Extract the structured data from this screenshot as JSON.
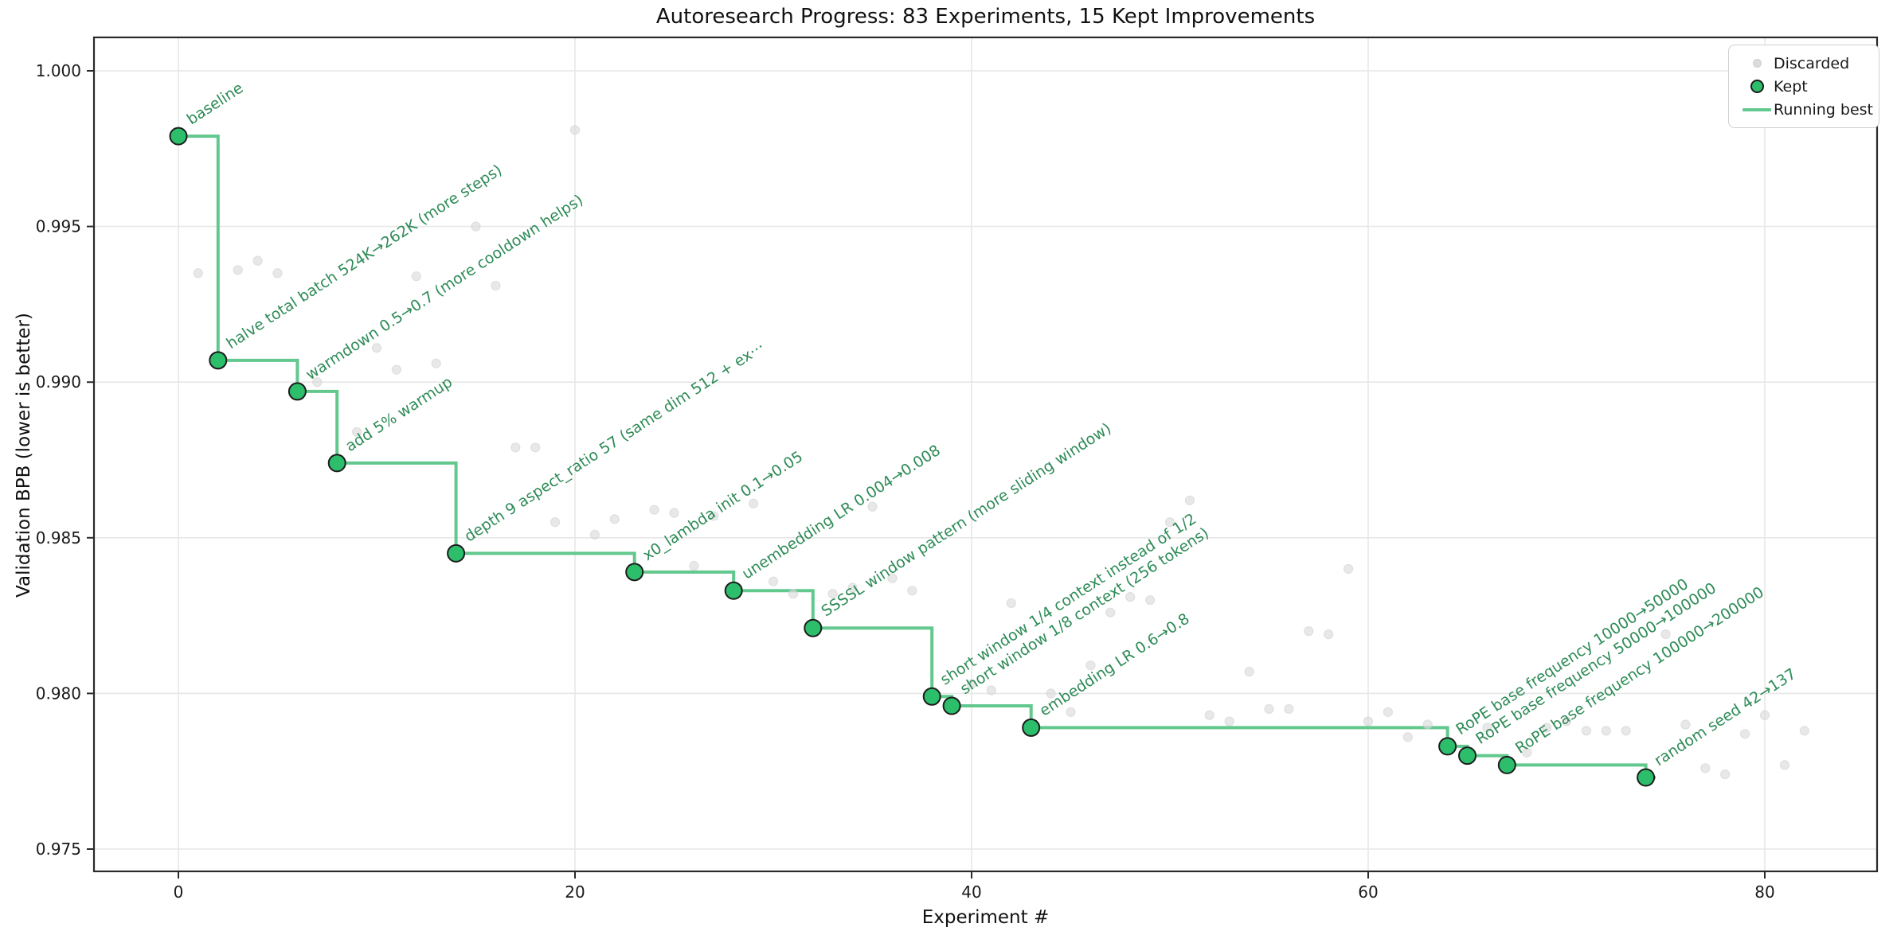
{
  "title": "Autoresearch Progress: 83 Experiments, 15 Kept Improvements",
  "axes": {
    "x_label": "Experiment #",
    "y_label": "Validation BPB (lower is better)",
    "x_ticks": [
      0,
      20,
      40,
      60,
      80
    ],
    "y_ticks": [
      1.0,
      0.995,
      0.99,
      0.985,
      0.98,
      0.975
    ],
    "y_tick_labels": [
      "1.000",
      "0.995",
      "0.990",
      "0.985",
      "0.980",
      "0.975"
    ],
    "x_range": [
      -4.3,
      85.7
    ],
    "y_range": [
      0.9743,
      1.0011
    ],
    "grid": true
  },
  "legend": {
    "position": "upper right",
    "items": [
      {
        "label": "Discarded",
        "marker": "small-gray-dot"
      },
      {
        "label": "Kept",
        "marker": "green-dot"
      },
      {
        "label": "Running best",
        "marker": "green-line"
      }
    ]
  },
  "colors": {
    "kept_fill": "#2dbe6c",
    "kept_edge": "#1c1c1c",
    "running_best_line": "#62c88e",
    "discarded_fill": "#dcdcdc",
    "discarded_edge": "#cfcfcf",
    "annotation_text": "#2e8b57",
    "grid": "#e7e7e7",
    "spine": "#2a2a2a",
    "text": "#191919"
  },
  "chart_data": {
    "type": "scatter",
    "title": "Autoresearch Progress: 83 Experiments, 15 Kept Improvements",
    "xlabel": "Experiment #",
    "ylabel": "Validation BPB (lower is better)",
    "annotation_rotation_deg": 33,
    "series": [
      {
        "name": "Kept",
        "points": [
          {
            "x": 0,
            "y": 0.9979,
            "label": "baseline"
          },
          {
            "x": 2,
            "y": 0.9907,
            "label": "halve total batch 524K→262K (more steps)"
          },
          {
            "x": 6,
            "y": 0.9897,
            "label": "warmdown 0.5→0.7 (more cooldown helps)"
          },
          {
            "x": 8,
            "y": 0.9874,
            "label": "add 5% warmup"
          },
          {
            "x": 14,
            "y": 0.9845,
            "label": "depth 9 aspect_ratio 57 (same dim 512 + ex···"
          },
          {
            "x": 23,
            "y": 0.9839,
            "label": "x0_lambda init 0.1→0.05"
          },
          {
            "x": 28,
            "y": 0.9833,
            "label": "unembedding LR 0.004→0.008"
          },
          {
            "x": 32,
            "y": 0.9821,
            "label": "SSSSL window pattern (more sliding window)"
          },
          {
            "x": 38,
            "y": 0.9799,
            "label": "short window 1/4 context instead of 1/2"
          },
          {
            "x": 39,
            "y": 0.9796,
            "label": "short window 1/8 context (256 tokens)"
          },
          {
            "x": 43,
            "y": 0.9789,
            "label": "embedding LR 0.6→0.8"
          },
          {
            "x": 64,
            "y": 0.9783,
            "label": "RoPE base frequency 10000→50000"
          },
          {
            "x": 65,
            "y": 0.978,
            "label": "RoPE base frequency 50000→100000"
          },
          {
            "x": 67,
            "y": 0.9777,
            "label": "RoPE base frequency 100000→200000"
          },
          {
            "x": 74,
            "y": 0.9773,
            "label": "random seed 42→137"
          }
        ]
      },
      {
        "name": "Discarded",
        "points": [
          {
            "x": 1,
            "y": 0.9935
          },
          {
            "x": 3,
            "y": 0.9936
          },
          {
            "x": 4,
            "y": 0.9939
          },
          {
            "x": 5,
            "y": 0.9935
          },
          {
            "x": 7,
            "y": 0.99
          },
          {
            "x": 9,
            "y": 0.9884
          },
          {
            "x": 10,
            "y": 0.9911
          },
          {
            "x": 11,
            "y": 0.9904
          },
          {
            "x": 12,
            "y": 0.9934
          },
          {
            "x": 13,
            "y": 0.9906
          },
          {
            "x": 15,
            "y": 0.995
          },
          {
            "x": 16,
            "y": 0.9931
          },
          {
            "x": 17,
            "y": 0.9879
          },
          {
            "x": 18,
            "y": 0.9879
          },
          {
            "x": 19,
            "y": 0.9855
          },
          {
            "x": 20,
            "y": 0.9981
          },
          {
            "x": 21,
            "y": 0.9851
          },
          {
            "x": 22,
            "y": 0.9856
          },
          {
            "x": 24,
            "y": 0.9859
          },
          {
            "x": 25,
            "y": 0.9858
          },
          {
            "x": 26,
            "y": 0.9841
          },
          {
            "x": 27,
            "y": 0.9857
          },
          {
            "x": 29,
            "y": 0.9861
          },
          {
            "x": 30,
            "y": 0.9836
          },
          {
            "x": 31,
            "y": 0.9832
          },
          {
            "x": 33,
            "y": 0.9832
          },
          {
            "x": 34,
            "y": 0.9834
          },
          {
            "x": 35,
            "y": 0.986
          },
          {
            "x": 36,
            "y": 0.9837
          },
          {
            "x": 37,
            "y": 0.9833
          },
          {
            "x": 40,
            "y": 0.9803
          },
          {
            "x": 41,
            "y": 0.9801
          },
          {
            "x": 42,
            "y": 0.9829
          },
          {
            "x": 44,
            "y": 0.98
          },
          {
            "x": 45,
            "y": 0.9794
          },
          {
            "x": 46,
            "y": 0.9809
          },
          {
            "x": 47,
            "y": 0.9826
          },
          {
            "x": 48,
            "y": 0.9831
          },
          {
            "x": 49,
            "y": 0.983
          },
          {
            "x": 50,
            "y": 0.9855
          },
          {
            "x": 51,
            "y": 0.9862
          },
          {
            "x": 52,
            "y": 0.9793
          },
          {
            "x": 53,
            "y": 0.9791
          },
          {
            "x": 54,
            "y": 0.9807
          },
          {
            "x": 55,
            "y": 0.9795
          },
          {
            "x": 56,
            "y": 0.9795
          },
          {
            "x": 57,
            "y": 0.982
          },
          {
            "x": 58,
            "y": 0.9819
          },
          {
            "x": 59,
            "y": 0.984
          },
          {
            "x": 60,
            "y": 0.9791
          },
          {
            "x": 61,
            "y": 0.9794
          },
          {
            "x": 62,
            "y": 0.9786
          },
          {
            "x": 63,
            "y": 0.979
          },
          {
            "x": 66,
            "y": 0.9789
          },
          {
            "x": 68,
            "y": 0.9781
          },
          {
            "x": 69,
            "y": 0.9789
          },
          {
            "x": 70,
            "y": 0.9791
          },
          {
            "x": 71,
            "y": 0.9788
          },
          {
            "x": 72,
            "y": 0.9788
          },
          {
            "x": 73,
            "y": 0.9788
          },
          {
            "x": 75,
            "y": 0.9819
          },
          {
            "x": 76,
            "y": 0.979
          },
          {
            "x": 77,
            "y": 0.9776
          },
          {
            "x": 78,
            "y": 0.9774
          },
          {
            "x": 79,
            "y": 0.9787
          },
          {
            "x": 80,
            "y": 0.9793
          },
          {
            "x": 81,
            "y": 0.9777
          },
          {
            "x": 82,
            "y": 0.9788
          }
        ]
      },
      {
        "name": "Running best",
        "style": "step-post-through-kept-points",
        "end_x": 74.5
      }
    ]
  }
}
